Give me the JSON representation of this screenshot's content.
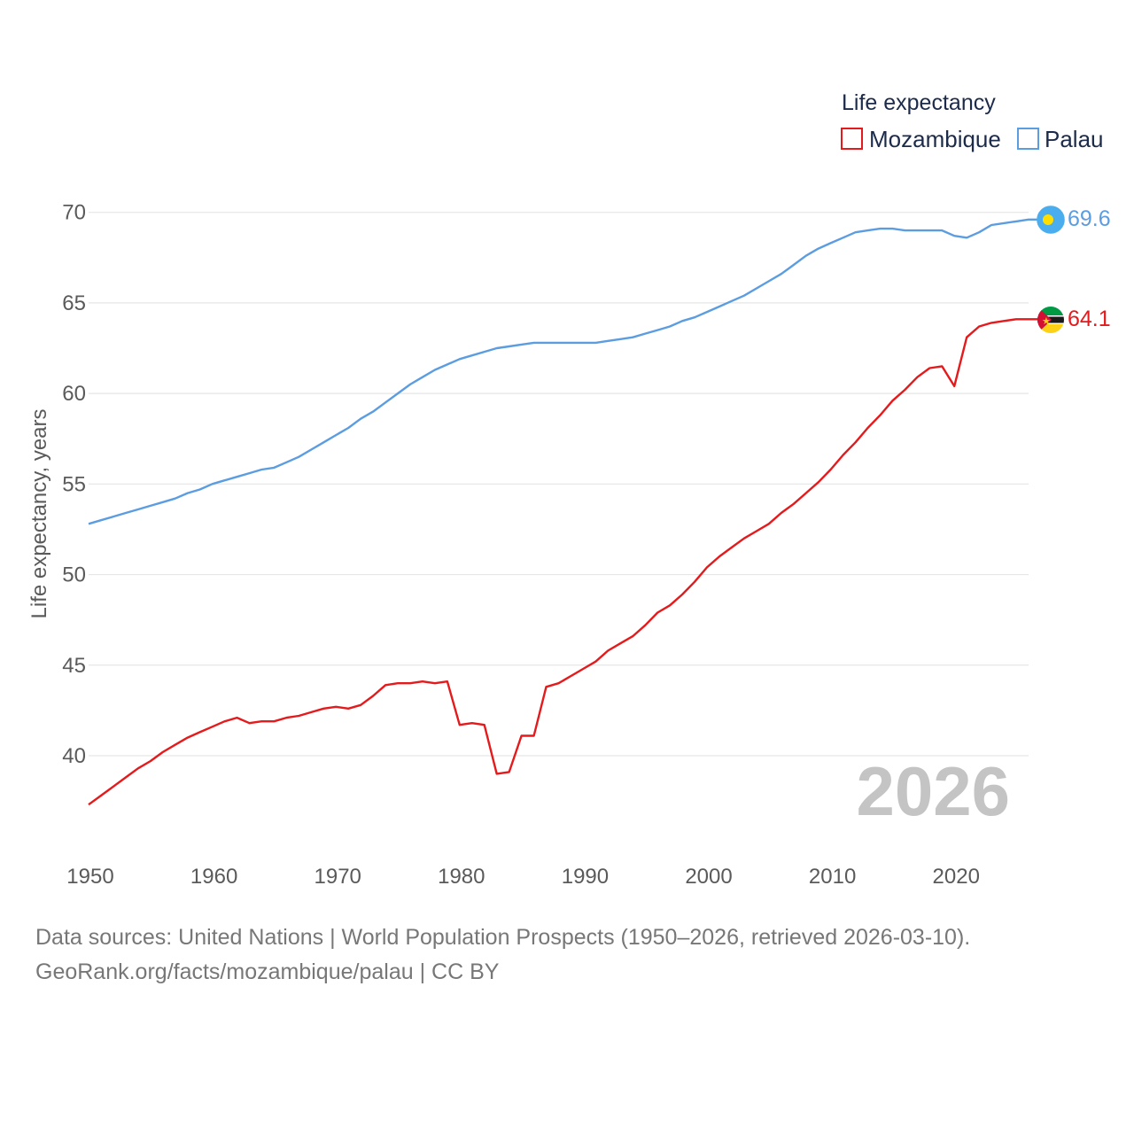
{
  "chart_data": {
    "type": "line",
    "legend_title": "Life expectancy",
    "ylabel": "Life expectancy, years",
    "current_year": "2026",
    "xlim": [
      1950,
      2026
    ],
    "ylim": [
      35.5,
      71.5
    ],
    "x_ticks": [
      1950,
      1960,
      1970,
      1980,
      1990,
      2000,
      2010,
      2020
    ],
    "y_ticks": [
      40,
      45,
      50,
      55,
      60,
      65,
      70
    ],
    "series": [
      {
        "name": "Mozambique",
        "color": "#e41a1c",
        "end_label": "64.1",
        "flag": "mozambique-flag",
        "x": [
          1950,
          1951,
          1952,
          1953,
          1954,
          1955,
          1956,
          1957,
          1958,
          1959,
          1960,
          1961,
          1962,
          1963,
          1964,
          1965,
          1966,
          1967,
          1968,
          1969,
          1970,
          1971,
          1972,
          1973,
          1974,
          1975,
          1976,
          1977,
          1978,
          1979,
          1980,
          1981,
          1982,
          1983,
          1984,
          1985,
          1986,
          1987,
          1988,
          1989,
          1990,
          1991,
          1992,
          1993,
          1994,
          1995,
          1996,
          1997,
          1998,
          1999,
          2000,
          2001,
          2002,
          2003,
          2004,
          2005,
          2006,
          2007,
          2008,
          2009,
          2010,
          2011,
          2012,
          2013,
          2014,
          2015,
          2016,
          2017,
          2018,
          2019,
          2020,
          2021,
          2022,
          2023,
          2024,
          2025,
          2026
        ],
        "values": [
          37.3,
          37.8,
          38.3,
          38.8,
          39.3,
          39.7,
          40.2,
          40.6,
          41.0,
          41.3,
          41.6,
          41.9,
          42.1,
          41.8,
          41.9,
          41.9,
          42.1,
          42.2,
          42.4,
          42.6,
          42.7,
          42.6,
          42.8,
          43.3,
          43.9,
          44.0,
          44.0,
          44.1,
          44.0,
          44.1,
          41.7,
          41.8,
          41.7,
          39.0,
          39.1,
          41.1,
          41.1,
          43.8,
          44.0,
          44.4,
          44.8,
          45.2,
          45.8,
          46.2,
          46.6,
          47.2,
          47.9,
          48.3,
          48.9,
          49.6,
          50.4,
          51.0,
          51.5,
          52.0,
          52.4,
          52.8,
          53.4,
          53.9,
          54.5,
          55.1,
          55.8,
          56.6,
          57.3,
          58.1,
          58.8,
          59.6,
          60.2,
          60.9,
          61.4,
          61.5,
          60.4,
          63.1,
          63.7,
          63.9,
          64.0,
          64.1,
          64.1
        ]
      },
      {
        "name": "Palau",
        "color": "#5b9de0",
        "end_label": "69.6",
        "flag": "palau-flag",
        "x": [
          1950,
          1951,
          1952,
          1953,
          1954,
          1955,
          1956,
          1957,
          1958,
          1959,
          1960,
          1961,
          1962,
          1963,
          1964,
          1965,
          1966,
          1967,
          1968,
          1969,
          1970,
          1971,
          1972,
          1973,
          1974,
          1975,
          1976,
          1977,
          1978,
          1979,
          1980,
          1981,
          1982,
          1983,
          1984,
          1985,
          1986,
          1987,
          1988,
          1989,
          1990,
          1991,
          1992,
          1993,
          1994,
          1995,
          1996,
          1997,
          1998,
          1999,
          2000,
          2001,
          2002,
          2003,
          2004,
          2005,
          2006,
          2007,
          2008,
          2009,
          2010,
          2011,
          2012,
          2013,
          2014,
          2015,
          2016,
          2017,
          2018,
          2019,
          2020,
          2021,
          2022,
          2023,
          2024,
          2025,
          2026
        ],
        "values": [
          52.8,
          53.0,
          53.2,
          53.4,
          53.6,
          53.8,
          54.0,
          54.2,
          54.5,
          54.7,
          55.0,
          55.2,
          55.4,
          55.6,
          55.8,
          55.9,
          56.2,
          56.5,
          56.9,
          57.3,
          57.7,
          58.1,
          58.6,
          59.0,
          59.5,
          60.0,
          60.5,
          60.9,
          61.3,
          61.6,
          61.9,
          62.1,
          62.3,
          62.5,
          62.6,
          62.7,
          62.8,
          62.8,
          62.8,
          62.8,
          62.8,
          62.8,
          62.9,
          63.0,
          63.1,
          63.3,
          63.5,
          63.7,
          64.0,
          64.2,
          64.5,
          64.8,
          65.1,
          65.4,
          65.8,
          66.2,
          66.6,
          67.1,
          67.6,
          68.0,
          68.3,
          68.6,
          68.9,
          69.0,
          69.1,
          69.1,
          69.0,
          69.0,
          69.0,
          69.0,
          68.7,
          68.6,
          68.9,
          69.3,
          69.4,
          69.5,
          69.6
        ]
      }
    ]
  },
  "footer": {
    "line1": "Data sources: United Nations | World Population Prospects (1950–2026, retrieved 2026-03-10).",
    "line2": "GeoRank.org/facts/mozambique/palau | CC BY"
  }
}
